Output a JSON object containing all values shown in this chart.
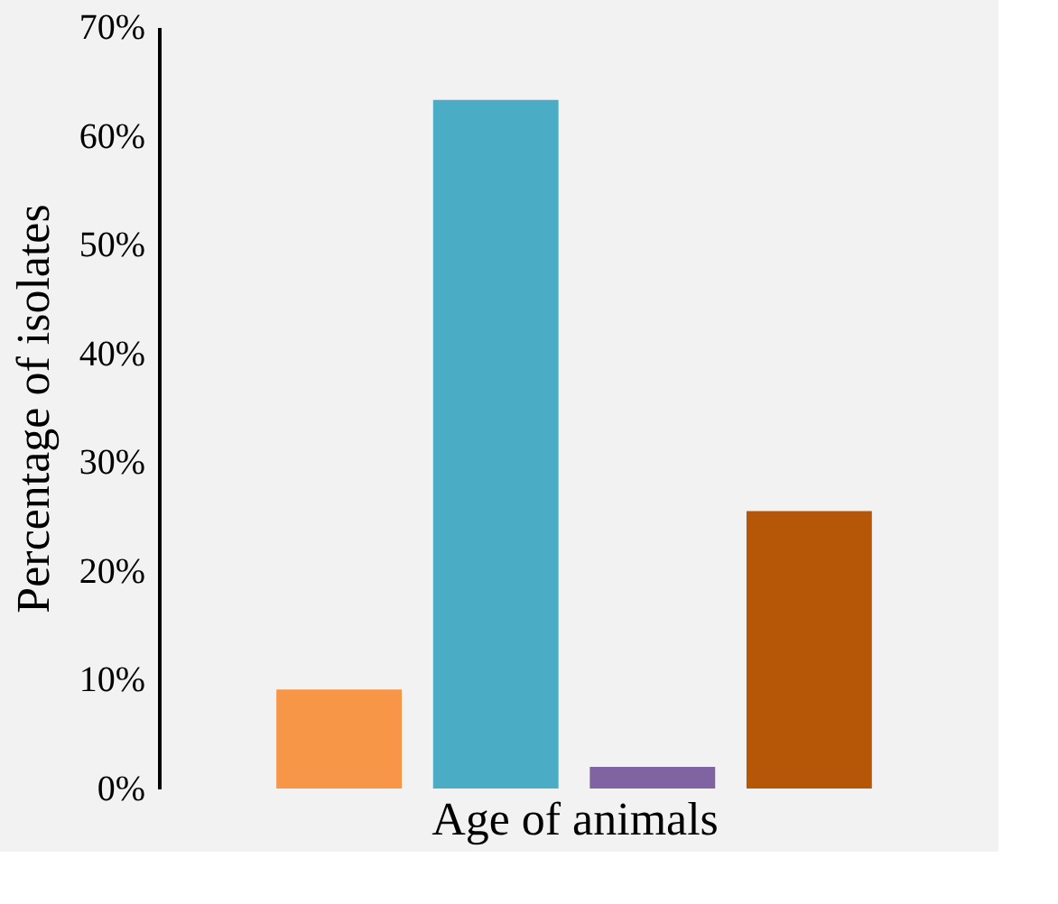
{
  "chart_data": {
    "type": "bar",
    "xlabel": "Age of animals",
    "ylabel": "Percentage of isolates",
    "categories": [
      null,
      null,
      null,
      null
    ],
    "values": [
      9.1,
      63.3,
      2.0,
      25.5
    ],
    "colors": [
      "#f79646",
      "#4bacc6",
      "#8064a2",
      "#b65708"
    ],
    "ylim": [
      0,
      70
    ],
    "yticks": [
      {
        "value": 0,
        "label": "0%"
      },
      {
        "value": 10,
        "label": "10%"
      },
      {
        "value": 20,
        "label": "20%"
      },
      {
        "value": 30,
        "label": "30%"
      },
      {
        "value": 40,
        "label": "40%"
      },
      {
        "value": 50,
        "label": "50%"
      },
      {
        "value": 60,
        "label": "60%"
      },
      {
        "value": 70,
        "label": "70%"
      }
    ],
    "grid": false,
    "legend": false,
    "tick_labels": "y"
  }
}
